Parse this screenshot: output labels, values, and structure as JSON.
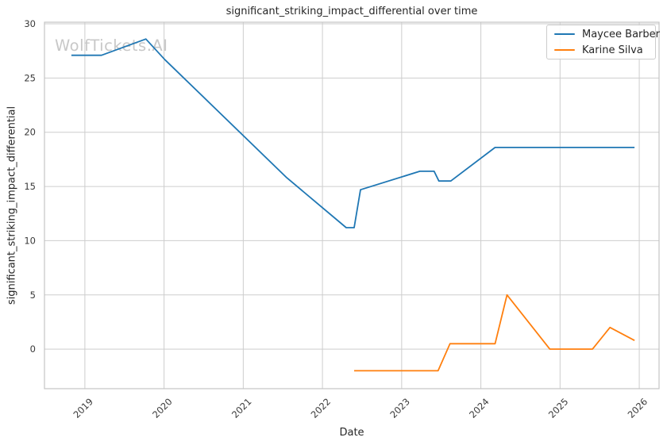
{
  "title": "significant_striking_impact_differential over time",
  "watermark": "WolfTickets.AI",
  "colors": {
    "background": "#ffffff",
    "grid": "#cdcdcd",
    "spine": "#c4c4c4",
    "text": "#262626",
    "tick_text": "#3a3a3a",
    "watermark": "#c8c8c8",
    "series_blue": "#1f77b4",
    "series_orange": "#ff7f0e"
  },
  "chart_data": {
    "type": "line",
    "title": "significant_striking_impact_differential over time",
    "xlabel": "Date",
    "ylabel": "significant_striking_impact_differential",
    "grid": true,
    "legend_position": "upper right",
    "xlim": [
      2018.49,
      2026.25
    ],
    "ylim": [
      -3.65,
      30.15
    ],
    "x_ticks": [
      2019,
      2020,
      2021,
      2022,
      2023,
      2024,
      2025,
      2026
    ],
    "y_ticks": [
      0,
      5,
      10,
      15,
      20,
      25,
      30
    ],
    "series": [
      {
        "name": "Maycee Barber",
        "color": "#1f77b4",
        "points": [
          [
            2018.83,
            27.1
          ],
          [
            2019.21,
            27.1
          ],
          [
            2019.77,
            28.6
          ],
          [
            2020.01,
            26.7
          ],
          [
            2021.55,
            15.8
          ],
          [
            2022.3,
            11.2
          ],
          [
            2022.4,
            11.2
          ],
          [
            2022.48,
            14.7
          ],
          [
            2023.23,
            16.4
          ],
          [
            2023.41,
            16.4
          ],
          [
            2023.47,
            15.5
          ],
          [
            2023.62,
            15.5
          ],
          [
            2024.18,
            18.6
          ],
          [
            2025.94,
            18.6
          ]
        ]
      },
      {
        "name": "Karine Silva",
        "color": "#ff7f0e",
        "points": [
          [
            2022.4,
            -2.0
          ],
          [
            2023.46,
            -2.0
          ],
          [
            2023.61,
            0.5
          ],
          [
            2024.18,
            0.5
          ],
          [
            2024.33,
            5.0
          ],
          [
            2024.87,
            0.0
          ],
          [
            2025.41,
            0.0
          ],
          [
            2025.63,
            2.0
          ],
          [
            2025.94,
            0.8
          ]
        ]
      }
    ]
  }
}
